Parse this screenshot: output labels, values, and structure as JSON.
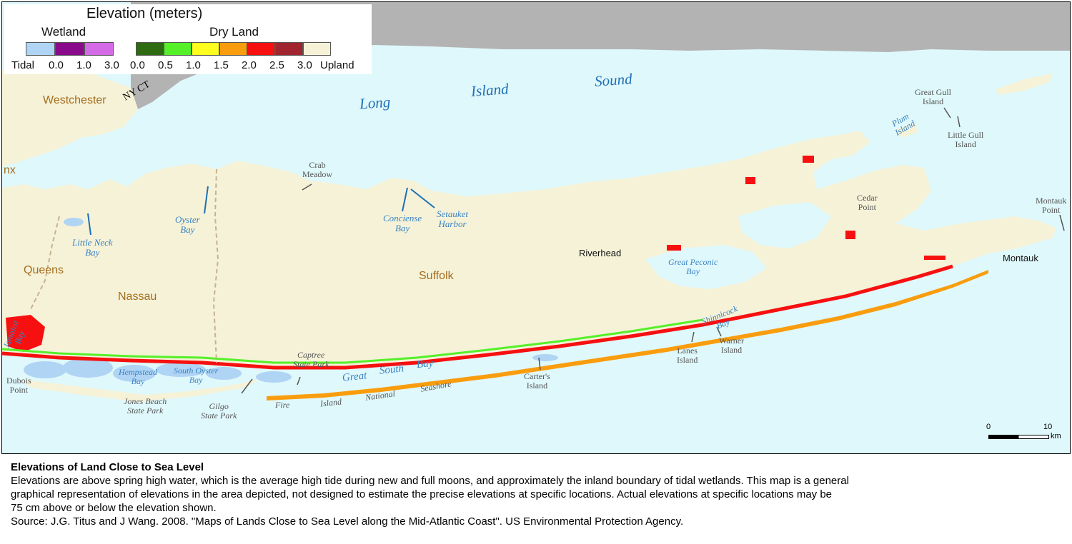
{
  "legend": {
    "title": "Elevation (meters)",
    "wetland_label": "Wetland",
    "dryland_label": "Dry Land",
    "wetland_colors": [
      "#b0d4f4",
      "#8a0a8c",
      "#d46ae6"
    ],
    "dryland_colors": [
      "#2d6a12",
      "#55f028",
      "#fdfd1e",
      "#f99d0e",
      "#f71010",
      "#a0252e",
      "#f5f2d8"
    ],
    "wetland_ticks": [
      "Tidal",
      "0.0",
      "1.0",
      "3.0"
    ],
    "dryland_ticks": [
      "0.0",
      "0.5",
      "1.0",
      "1.5",
      "2.0",
      "2.5",
      "3.0",
      "Upland"
    ]
  },
  "colors": {
    "water": "#dff8fb",
    "upland": "#f5f2d8",
    "connecticut": "#b3b3b3",
    "county_line": "#c9b191"
  },
  "labels": {
    "nyct": "NY CT",
    "westchester": "Westchester",
    "bronx_partial": "nx",
    "queens": "Queens",
    "nassau": "Nassau",
    "suffolk": "Suffolk",
    "long": "Long",
    "island": "Island",
    "sound": "Sound",
    "crab_meadow": [
      "Crab",
      "Meadow"
    ],
    "oyster_bay": [
      "Oyster",
      "Bay"
    ],
    "little_neck_bay": [
      "Little Neck",
      "Bay"
    ],
    "conciense_bay": [
      "Conciense",
      "Bay"
    ],
    "setauket_harbor": [
      "Setauket",
      "Harbor"
    ],
    "riverhead": "Riverhead",
    "great_peconic_bay": [
      "Great Peconic",
      "Bay"
    ],
    "great_gull_island": [
      "Great Gull",
      "Island"
    ],
    "plum_island": [
      "Plum",
      "Island"
    ],
    "little_gull_island": [
      "Little Gull",
      "Island"
    ],
    "cedar_point": [
      "Cedar",
      "Point"
    ],
    "montauk_point": [
      "Montauk",
      "Point"
    ],
    "montauk": "Montauk",
    "shinnecock_bay": [
      "Shinnicock",
      "Bay"
    ],
    "warner_island": [
      "Warner",
      "Island"
    ],
    "lanes_island": [
      "Lanes",
      "Island"
    ],
    "carters_island": [
      "Carter's",
      "Island"
    ],
    "jamaica_bay": [
      "Jamaica",
      "Bay"
    ],
    "dubois_point": [
      "Dubois",
      "Point"
    ],
    "hempstead_bay": [
      "Hempstead",
      "Bay"
    ],
    "south_oyster_bay": [
      "South Oyster",
      "Bay"
    ],
    "jones_beach": [
      "Jones Beach",
      "State Park"
    ],
    "gilgo": [
      "Gilgo",
      "State Park"
    ],
    "captree": [
      "Captree",
      "State Park"
    ],
    "great_south_bay": [
      "Great",
      "South",
      "Bay"
    ],
    "fire_island": [
      "Fire",
      "Island",
      "National",
      "Seashore"
    ]
  },
  "scale": {
    "start": "0",
    "end": "10",
    "unit": "km"
  },
  "caption": {
    "title": "Elevations of Land Close to Sea Level",
    "line1": "Elevations are above spring high water, which is the average high tide during new and full moons, and approximately the inland boundary of tidal wetlands. This map is a general",
    "line2": "graphical representation of elevations in the area depicted,  not designed to estimate the precise elevations at specific locations.  Actual  elevations at specific locations may be",
    "line3": "75 cm above or below the elevation shown.",
    "source": "Source:  J.G. Titus and J Wang.  2008.   \"Maps of Lands Close to Sea Level along the Mid-Atlantic Coast\".  US Environmental Protection Agency."
  }
}
